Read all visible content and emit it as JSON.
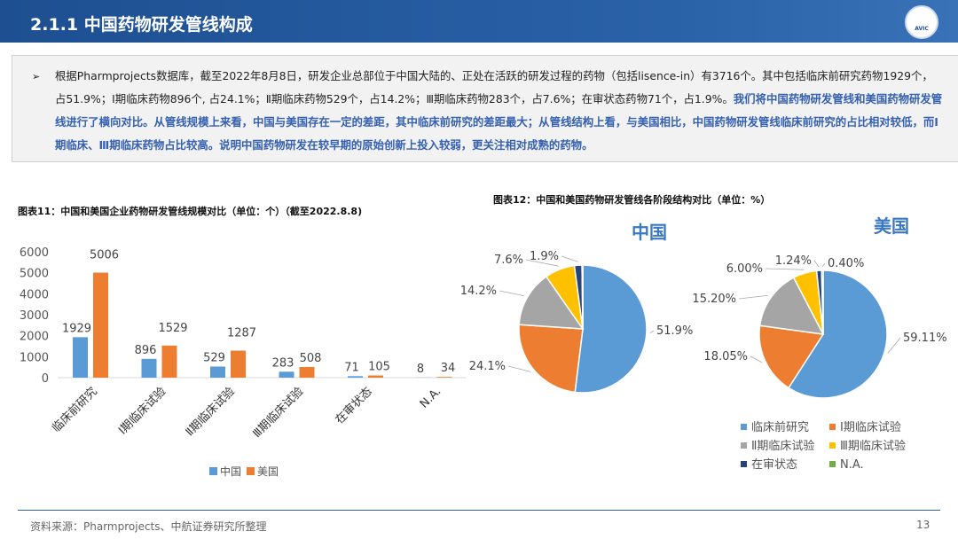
{
  "header": {
    "title": "2.1.1 中国药物研发管线构成",
    "logo_text": "AVIC"
  },
  "summary": {
    "bullet": "➢",
    "plain": "根据Pharmprojects数据库，截至2022年8月8日，研发企业总部位于中国大陆的、正处在活跃的研发过程的药物（包括lisence-in）有3716个。其中包括临床前研究药物1929个，占51.9%；Ⅰ期临床药物896个, 占24.1%；Ⅱ期临床药物529个，占14.2%；Ⅲ期临床药物283个，占7.6%；在审状态药物71个，占1.9%。",
    "highlight": "我们将中国药物研发管线和美国药物研发管线进行了横向对比。从管线规模上来看，中国与美国存在一定的差距，其中临床前研究的差距最大；从管线结构上看，与美国相比，中国药物研发管线临床前研究的占比相对较低，而Ⅰ期临床、Ⅲ期临床药物占比较高。说明中国药物研发在较早期的原始创新上投入较弱，更关注相对成熟的药物。"
  },
  "colors": {
    "china": "#5b9bd5",
    "usa": "#ed7d31",
    "gray": "#a5a5a5",
    "yellow": "#ffc000",
    "navy": "#264478",
    "green": "#70ad47"
  },
  "chart_data": [
    {
      "type": "bar",
      "title": "图表11：中国和美国企业药物研发管线规模对比（单位：个）（截至2022.8.8)",
      "categories": [
        "临床前研究",
        "Ⅰ期临床试验",
        "Ⅱ期临床试验",
        "Ⅲ期临床试验",
        "在审状态",
        "N.A."
      ],
      "series": [
        {
          "name": "中国",
          "values": [
            1929,
            896,
            529,
            283,
            71,
            8
          ]
        },
        {
          "name": "美国",
          "values": [
            5006,
            1529,
            1287,
            508,
            105,
            34
          ]
        }
      ],
      "yticks": [
        "0",
        "1000",
        "2000",
        "3000",
        "4000",
        "5000",
        "6000"
      ],
      "ylim": [
        0,
        6000
      ],
      "grid": false,
      "legend": "bottom"
    },
    {
      "type": "pie",
      "title": "图表12：中国和美国药物研发管线各阶段结构对比（单位：%）",
      "legend_entries": [
        "临床前研究",
        "Ⅰ期临床试验",
        "Ⅱ期临床试验",
        "Ⅲ期临床试验",
        "在审状态",
        "N.A."
      ],
      "legend": "bottom",
      "pies": [
        {
          "name": "中国",
          "values": [
            51.9,
            24.1,
            14.2,
            7.6,
            1.9,
            0.2
          ],
          "labels": [
            "51.9%",
            "24.1%",
            "14.2%",
            "7.6%",
            "1.9%",
            ""
          ]
        },
        {
          "name": "美国",
          "values": [
            59.11,
            18.05,
            15.2,
            6.0,
            1.24,
            0.4
          ],
          "labels": [
            "59.11%",
            "18.05%",
            "15.20%",
            "6.00%",
            "1.24%",
            "0.40%"
          ]
        }
      ]
    }
  ],
  "footer": {
    "source": "资料来源：Pharmprojects、中航证券研究所整理",
    "page": "13"
  }
}
